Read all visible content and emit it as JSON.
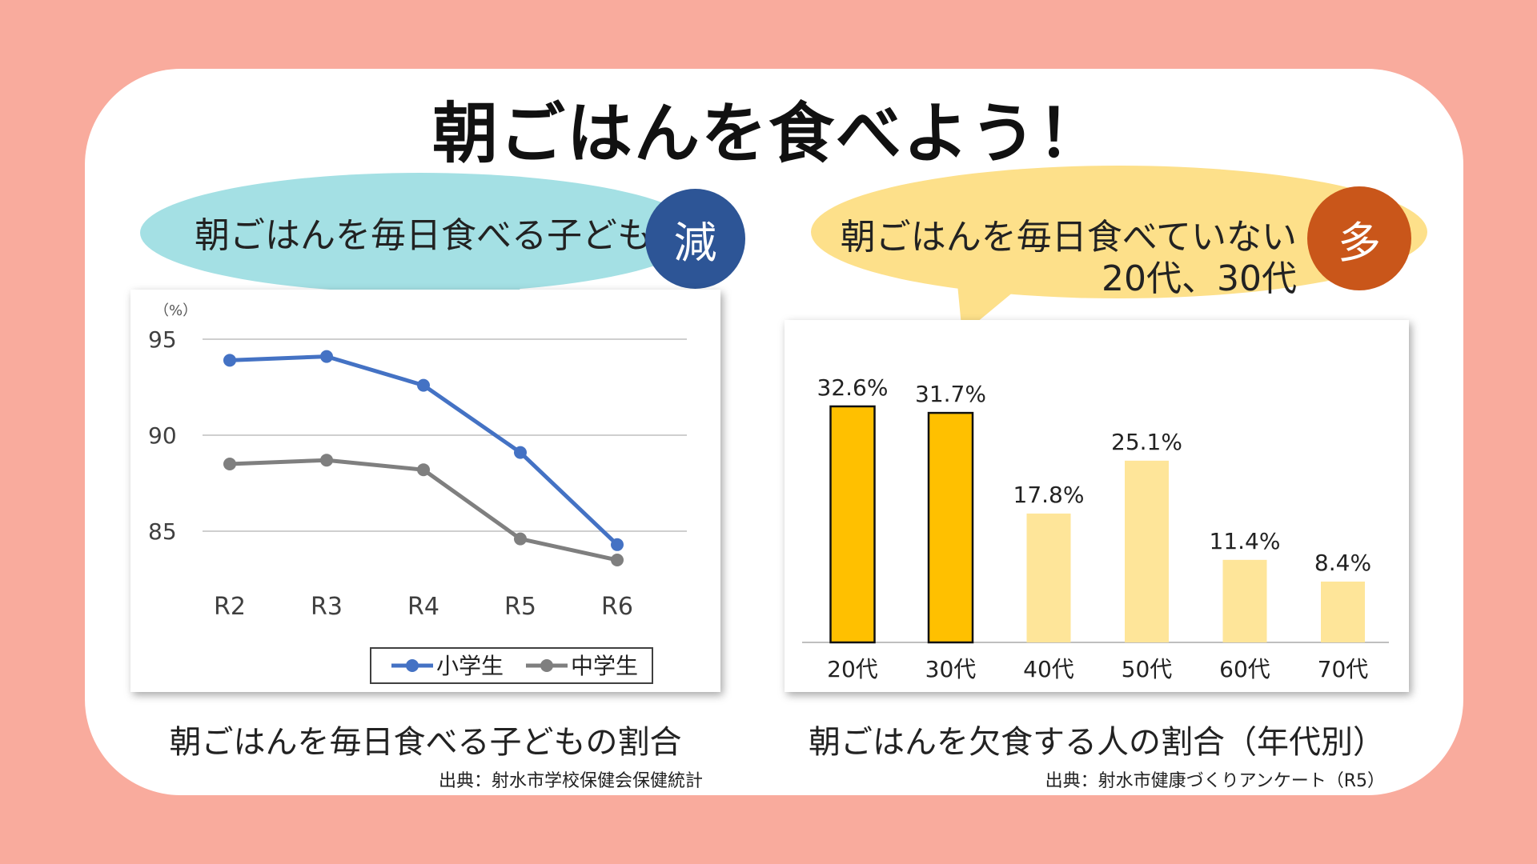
{
  "title": "朝ごはんを食べよう！",
  "left_bubble": {
    "text": "朝ごはんを毎日食べる子ども",
    "badge": "減",
    "color": "#a4e0e4",
    "badge_color": "#2d5596"
  },
  "right_bubble": {
    "line1": "朝ごはんを毎日食べていない",
    "line2": "20代、30代",
    "badge": "多",
    "color": "#fde08a",
    "badge_color": "#c9561a"
  },
  "left_caption": "朝ごはんを毎日食べる子どもの割合",
  "left_source": "出典：射水市学校保健会保健統計",
  "right_caption": "朝ごはんを欠食する人の割合（年代別）",
  "right_source": "出典：射水市健康づくりアンケート（R5）",
  "chart_data": [
    {
      "type": "line",
      "ylabel": "（%）",
      "ylim": [
        83,
        95
      ],
      "yticks": [
        95,
        90,
        85
      ],
      "grid": true,
      "legend": "bottom",
      "categories": [
        "R2",
        "R3",
        "R4",
        "R5",
        "R6"
      ],
      "series": [
        {
          "name": "小学生",
          "color": "#4472c4",
          "values": [
            93.9,
            94.1,
            92.6,
            89.1,
            84.3
          ]
        },
        {
          "name": "中学生",
          "color": "#7f7f7f",
          "values": [
            88.5,
            88.7,
            88.2,
            84.6,
            83.5
          ]
        }
      ]
    },
    {
      "type": "bar",
      "categories": [
        "20代",
        "30代",
        "40代",
        "50代",
        "60代",
        "70代"
      ],
      "values": [
        32.6,
        31.7,
        17.8,
        25.1,
        11.4,
        8.4
      ],
      "labels": [
        "32.6%",
        "31.7%",
        "17.8%",
        "25.1%",
        "11.4%",
        "8.4%"
      ],
      "highlight": [
        true,
        true,
        false,
        false,
        false,
        false
      ],
      "highlight_color": "#ffc000",
      "normal_color": "#fee599",
      "ylim": [
        0,
        35
      ]
    }
  ]
}
